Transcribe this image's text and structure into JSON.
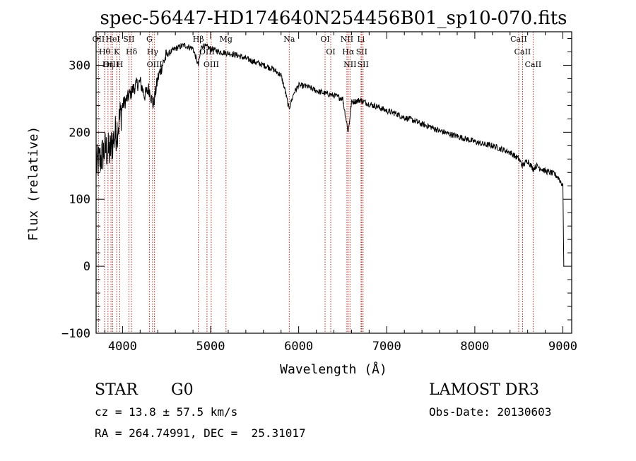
{
  "chart_data": {
    "type": "line",
    "title": "spec-56447-HD174640N254456B01_sp10-070.fits",
    "xlabel": "Wavelength (Å)",
    "ylabel": "Flux (relative)",
    "xlim": [
      3700,
      9100
    ],
    "ylim": [
      -100,
      350
    ],
    "xticks": [
      4000,
      5000,
      6000,
      7000,
      8000,
      9000
    ],
    "yticks": [
      -100,
      0,
      100,
      200,
      300
    ],
    "xtick_labels": [
      "4000",
      "5000",
      "6000",
      "7000",
      "8000",
      "9000"
    ],
    "ytick_labels": [
      "−100",
      "0",
      "100",
      "200",
      "300"
    ],
    "series": [
      {
        "name": "flux",
        "x": [
          3700,
          3750,
          3800,
          3850,
          3900,
          3950,
          4000,
          4050,
          4100,
          4150,
          4200,
          4250,
          4300,
          4350,
          4400,
          4450,
          4500,
          4600,
          4700,
          4800,
          4860,
          4900,
          5000,
          5100,
          5200,
          5300,
          5400,
          5500,
          5600,
          5700,
          5800,
          5850,
          5890,
          5950,
          6000,
          6100,
          6200,
          6300,
          6400,
          6500,
          6563,
          6600,
          6700,
          6800,
          6900,
          7000,
          7100,
          7200,
          7300,
          7400,
          7500,
          7600,
          7700,
          7800,
          7900,
          8000,
          8100,
          8200,
          8300,
          8400,
          8500,
          8542,
          8600,
          8662,
          8700,
          8800,
          8900,
          8950,
          9000,
          9010
        ],
        "y": [
          150,
          160,
          175,
          170,
          190,
          210,
          240,
          250,
          260,
          270,
          275,
          255,
          265,
          240,
          280,
          300,
          315,
          325,
          330,
          325,
          300,
          330,
          325,
          320,
          318,
          315,
          310,
          305,
          300,
          295,
          285,
          260,
          235,
          260,
          270,
          268,
          262,
          258,
          255,
          250,
          200,
          245,
          248,
          242,
          238,
          232,
          228,
          222,
          218,
          212,
          208,
          202,
          198,
          194,
          190,
          186,
          182,
          180,
          175,
          170,
          160,
          150,
          158,
          145,
          150,
          142,
          138,
          132,
          120,
          0
        ]
      }
    ],
    "lines": [
      {
        "name": "Hθ",
        "x": 3797
      },
      {
        "name": "OII",
        "x": 3727
      },
      {
        "name": "OIII",
        "x": 3869
      },
      {
        "name": "K",
        "x": 3934
      },
      {
        "name": "HeI",
        "x": 3889
      },
      {
        "name": "Hη",
        "x": 3835
      },
      {
        "name": "H",
        "x": 3969
      },
      {
        "name": "Hδ",
        "x": 4102
      },
      {
        "name": "SII",
        "x": 4072
      },
      {
        "name": "OIII",
        "x": 4363
      },
      {
        "name": "Hγ",
        "x": 4341
      },
      {
        "name": "G",
        "x": 4305
      },
      {
        "name": "OIII",
        "x": 4959
      },
      {
        "name": "OIII",
        "x": 5007
      },
      {
        "name": "Hβ",
        "x": 4861
      },
      {
        "name": "Mg",
        "x": 5175
      },
      {
        "name": "Na",
        "x": 5893
      },
      {
        "name": "OI",
        "x": 6300
      },
      {
        "name": "OI",
        "x": 6364
      },
      {
        "name": "Hα",
        "x": 6563
      },
      {
        "name": "NII",
        "x": 6548
      },
      {
        "name": "NII",
        "x": 6583
      },
      {
        "name": "SII",
        "x": 6716
      },
      {
        "name": "Li",
        "x": 6708
      },
      {
        "name": "SII",
        "x": 6731
      },
      {
        "name": "CaII",
        "x": 8542
      },
      {
        "name": "CaII",
        "x": 8498
      },
      {
        "name": "CaII",
        "x": 8662
      }
    ]
  },
  "info": {
    "object_class": "STAR",
    "subclass": "G0",
    "survey": "LAMOST DR3",
    "cz": "cz = 13.8 ± 57.5 km/s",
    "obs_date": "Obs-Date: 20130603",
    "coords": "RA = 264.74991, DEC =  25.31017"
  },
  "colors": {
    "spectrum": "#000000",
    "line_markers": "#c8281e",
    "axes": "#000000",
    "background": "#ffffff"
  }
}
